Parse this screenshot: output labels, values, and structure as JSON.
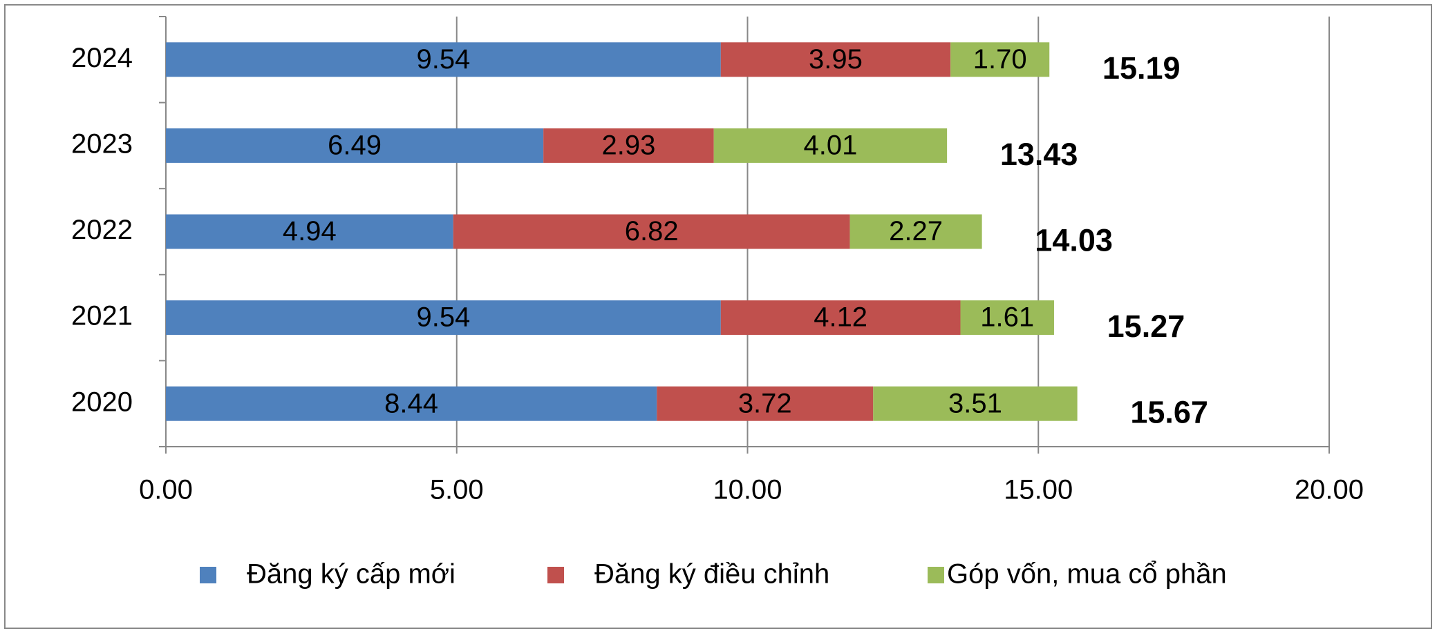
{
  "chart_data": {
    "type": "stacked-bar-horizontal",
    "categories": [
      "2020",
      "2021",
      "2022",
      "2023",
      "2024"
    ],
    "series": [
      {
        "name": "Đăng ký cấp mới",
        "color": "#4f81bd",
        "values": [
          8.44,
          9.54,
          4.94,
          6.49,
          9.54
        ],
        "value_labels": [
          "8.44",
          "9.54",
          "4.94",
          "6.49",
          "9.54"
        ]
      },
      {
        "name": "Đăng ký điều chỉnh",
        "color": "#c0504d",
        "values": [
          3.72,
          4.12,
          6.82,
          2.93,
          3.95
        ],
        "value_labels": [
          "3.72",
          "4.12",
          "6.82",
          "2.93",
          "3.95"
        ]
      },
      {
        "name": "Góp vốn, mua cổ phần",
        "color": "#9bbb59",
        "values": [
          3.51,
          1.61,
          2.27,
          4.01,
          1.7
        ],
        "value_labels": [
          "3.51",
          "1.61",
          "2.27",
          "4.01",
          "1.70"
        ]
      }
    ],
    "totals": [
      15.67,
      15.27,
      14.03,
      13.43,
      15.19
    ],
    "xlim": [
      0,
      20
    ],
    "xticks": [
      {
        "value": 0,
        "label": "0.00"
      },
      {
        "value": 5,
        "label": "5.00"
      },
      {
        "value": 10,
        "label": "10.00"
      },
      {
        "value": 15,
        "label": "15.00"
      },
      {
        "value": 20,
        "label": "20.00"
      }
    ],
    "grid": true,
    "legend": "bottom"
  }
}
